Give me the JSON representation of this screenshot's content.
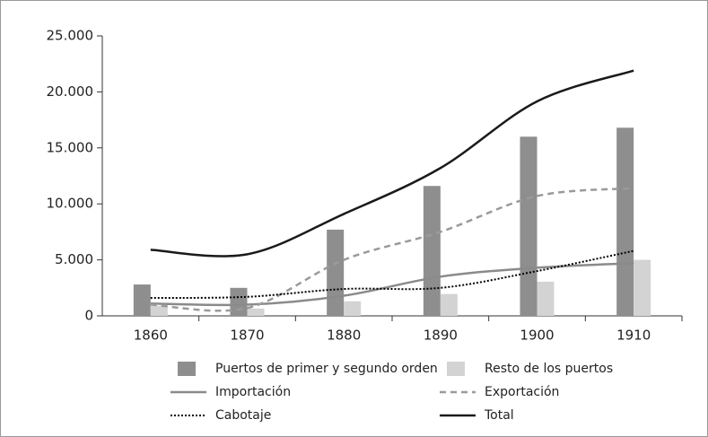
{
  "chart_data": {
    "type": "bar",
    "categories": [
      "1860",
      "1870",
      "1880",
      "1890",
      "1900",
      "1910"
    ],
    "series": [
      {
        "name": "Puertos de primer y segundo orden",
        "style": "bar",
        "color": "#8e8e8e",
        "values": [
          2800,
          2500,
          7700,
          11600,
          16000,
          16800
        ]
      },
      {
        "name": "Resto de los puertos",
        "style": "bar",
        "color": "#d3d3d3",
        "values": [
          900,
          650,
          1300,
          1950,
          3050,
          5000
        ]
      },
      {
        "name": "Importación",
        "style": "solid",
        "color": "#8a8a8a",
        "values": [
          1100,
          1000,
          1800,
          3500,
          4300,
          4700
        ]
      },
      {
        "name": "Exportación",
        "style": "dashed",
        "color": "#9a9a9a",
        "values": [
          1000,
          700,
          5000,
          7500,
          10700,
          11400
        ]
      },
      {
        "name": "Cabotaje",
        "style": "dotted",
        "color": "#000000",
        "values": [
          1600,
          1700,
          2400,
          2500,
          4000,
          5800
        ]
      },
      {
        "name": "Total",
        "style": "solid",
        "color": "#1a1a1a",
        "values": [
          5900,
          5500,
          9100,
          13200,
          19150,
          21900
        ]
      }
    ],
    "ylim": [
      0,
      25000
    ],
    "yticks": [
      0,
      {
        "value": 5000,
        "label": "5.000"
      },
      {
        "value": 10000,
        "label": "10.000"
      },
      {
        "value": 15000,
        "label": "15.000"
      },
      {
        "value": 20000,
        "label": "20.000"
      },
      {
        "value": 25000,
        "label": "25.000"
      }
    ],
    "legend": "bottom"
  }
}
